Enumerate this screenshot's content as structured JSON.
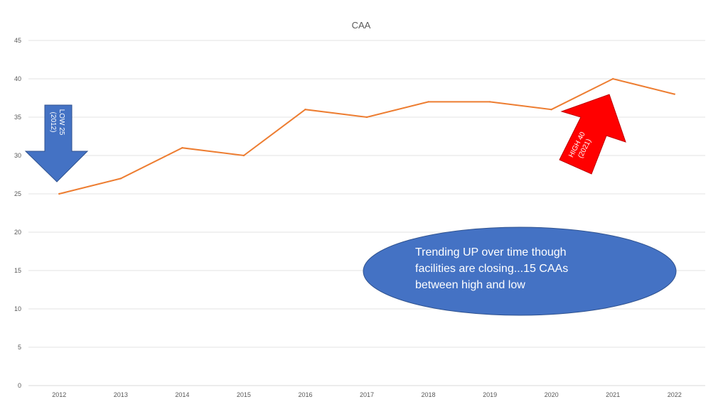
{
  "chart_data": {
    "type": "line",
    "title": "CAA",
    "xlabel": "",
    "ylabel": "",
    "categories": [
      "2012",
      "2013",
      "2014",
      "2015",
      "2016",
      "2017",
      "2018",
      "2019",
      "2020",
      "2021",
      "2022"
    ],
    "series": [
      {
        "name": "CAA",
        "values": [
          25,
          27,
          31,
          30,
          36,
          35,
          37,
          37,
          36,
          40,
          38
        ],
        "color": "#ED7D31"
      }
    ],
    "ylim": [
      0,
      45
    ],
    "yticks": [
      0,
      5,
      10,
      15,
      20,
      25,
      30,
      35,
      40,
      45
    ],
    "grid": true,
    "legend": "none",
    "annotations": {
      "low": {
        "line1": "LOW 25",
        "line2": "(2012)",
        "color": "#4472C4"
      },
      "high": {
        "line1": "HIGH 40",
        "line2": "(2021)",
        "color": "#FF0000"
      },
      "callout": {
        "lines": [
          "Trending UP over time though",
          "facilities are closing...15 CAAs",
          "between high and low"
        ],
        "color": "#4472C4"
      }
    }
  }
}
